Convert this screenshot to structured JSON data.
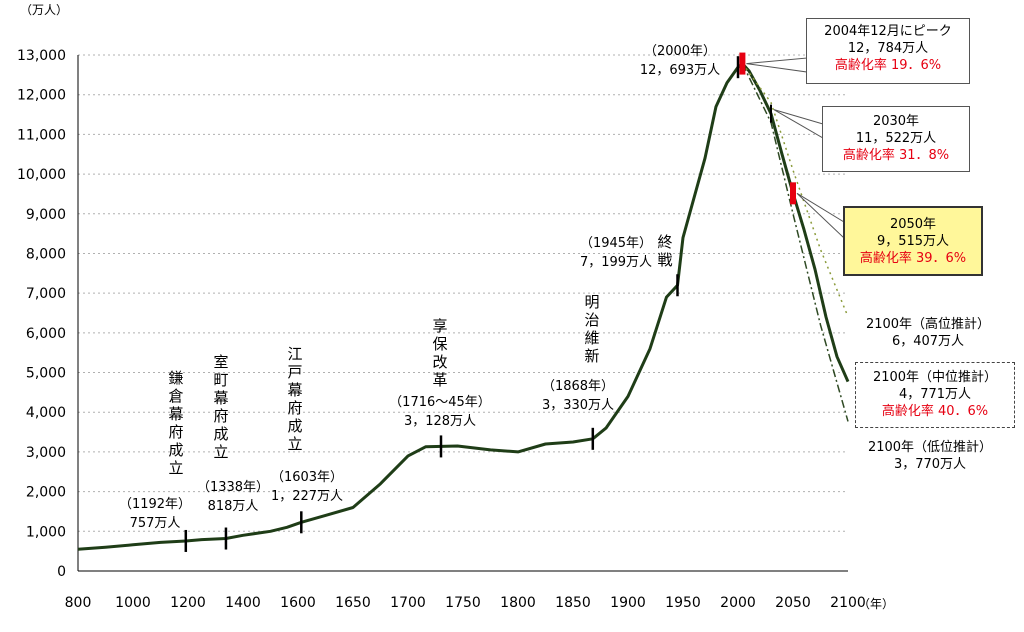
{
  "chart_data": {
    "type": "line",
    "y_unit": "（万人）",
    "x_unit": "（年）",
    "xlim": [
      800,
      2100
    ],
    "ylim": [
      0,
      13000
    ],
    "x_ticks": [
      800,
      1000,
      1200,
      1400,
      1600,
      1650,
      1700,
      1750,
      1800,
      1850,
      1900,
      1950,
      2000,
      2050,
      2100
    ],
    "y_ticks": [
      0,
      1000,
      2000,
      3000,
      4000,
      5000,
      6000,
      7000,
      8000,
      9000,
      10000,
      11000,
      12000,
      13000
    ],
    "x_tick_labels": [
      "800",
      "1000",
      "1200",
      "1400",
      "1600",
      "1650",
      "1700",
      "1750",
      "1800",
      "1850",
      "1900",
      "1950",
      "2000",
      "2050",
      "2100"
    ],
    "y_tick_labels": [
      "0",
      "1,000",
      "2,000",
      "3,000",
      "4,000",
      "5,000",
      "6,000",
      "7,000",
      "8,000",
      "9,000",
      "10,000",
      "11,000",
      "12,000",
      "13,000"
    ],
    "grid": "horizontal dotted",
    "series": [
      {
        "style": "solid",
        "points": [
          [
            800,
            550
          ],
          [
            900,
            600
          ],
          [
            1000,
            660
          ],
          [
            1100,
            720
          ],
          [
            1192,
            757
          ],
          [
            1250,
            790
          ],
          [
            1338,
            818
          ],
          [
            1400,
            900
          ],
          [
            1500,
            1000
          ],
          [
            1560,
            1100
          ],
          [
            1603,
            1227
          ],
          [
            1625,
            1400
          ],
          [
            1650,
            1600
          ],
          [
            1675,
            2200
          ],
          [
            1700,
            2900
          ],
          [
            1716,
            3128
          ],
          [
            1745,
            3150
          ],
          [
            1775,
            3050
          ],
          [
            1800,
            3000
          ],
          [
            1825,
            3200
          ],
          [
            1850,
            3250
          ],
          [
            1868,
            3330
          ],
          [
            1880,
            3600
          ],
          [
            1900,
            4400
          ],
          [
            1920,
            5600
          ],
          [
            1935,
            6900
          ],
          [
            1945,
            7199
          ],
          [
            1950,
            8400
          ],
          [
            1960,
            9400
          ],
          [
            1970,
            10400
          ],
          [
            1980,
            11700
          ],
          [
            1990,
            12300
          ],
          [
            2000,
            12693
          ],
          [
            2004,
            12784
          ],
          [
            2010,
            12600
          ],
          [
            2020,
            12100
          ],
          [
            2030,
            11522
          ],
          [
            2040,
            10500
          ],
          [
            2050,
            9515
          ],
          [
            2060,
            8600
          ],
          [
            2070,
            7600
          ],
          [
            2080,
            6400
          ],
          [
            2090,
            5400
          ],
          [
            2100,
            4771
          ]
        ]
      },
      {
        "style": "dotted",
        "points": [
          [
            2004,
            12784
          ],
          [
            2030,
            11800
          ],
          [
            2050,
            10100
          ],
          [
            2075,
            8100
          ],
          [
            2100,
            6407
          ]
        ]
      },
      {
        "style": "dash-dot",
        "points": [
          [
            2004,
            12784
          ],
          [
            2030,
            11300
          ],
          [
            2050,
            9000
          ],
          [
            2075,
            6200
          ],
          [
            2100,
            3770
          ]
        ]
      }
    ],
    "period_labels": [
      {
        "text": "鎌倉幕府成立",
        "x": 1192
      },
      {
        "text": "室町幕府成立",
        "x": 1338
      },
      {
        "text": "江戸幕府成立",
        "x": 1603
      },
      {
        "text": "享保改革",
        "x": 1730
      },
      {
        "text": "明治維新",
        "x": 1868
      },
      {
        "text": "終戦",
        "x": 1945
      }
    ],
    "annotations": [
      {
        "year": "（1192年）",
        "value": "757万人",
        "x": 1192
      },
      {
        "year": "（1338年）",
        "value": "818万人",
        "x": 1338
      },
      {
        "year": "（1603年）",
        "value": "1，227万人",
        "x": 1603
      },
      {
        "year": "（1716～45年）",
        "value": "3，128万人",
        "x": 1730
      },
      {
        "year": "（1868年）",
        "value": "3，330万人",
        "x": 1868
      },
      {
        "year": "（1945年）",
        "value": "7，199万人",
        "x": 1945
      },
      {
        "year": "（2000年）",
        "value": "12，693万人",
        "x": 2000
      }
    ],
    "callouts": {
      "peak": {
        "line1": "2004年12月にピーク",
        "line2": "12，784万人",
        "line3": "高齢化率 19．6%"
      },
      "y2030": {
        "line1": "2030年",
        "line2": "11，522万人",
        "line3": "高齢化率 31．8%"
      },
      "y2050": {
        "line1": "2050年",
        "line2": "9，515万人",
        "line3": "高齢化率 39．6%"
      },
      "high2100": {
        "line1": "2100年（高位推計）",
        "line2": "6，407万人"
      },
      "mid2100": {
        "line1": "2100年（中位推計）",
        "line2": "4，771万人",
        "line3": "高齢化率 40．6%"
      },
      "low2100": {
        "line1": "2100年（低位推計）",
        "line2": "3，770万人"
      }
    },
    "colors": {
      "line": "#1f3d17",
      "highlight": "#e60012",
      "callout_fill": "#fff79a",
      "grid": "#b0b0b0"
    }
  }
}
